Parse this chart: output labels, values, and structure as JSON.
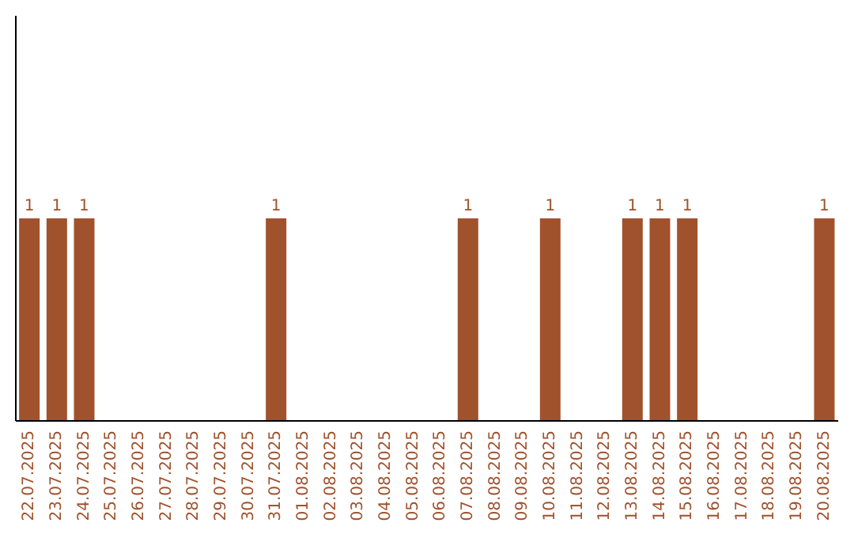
{
  "chart_data": {
    "type": "bar",
    "categories": [
      "22.07.2025",
      "23.07.2025",
      "24.07.2025",
      "25.07.2025",
      "26.07.2025",
      "27.07.2025",
      "28.07.2025",
      "29.07.2025",
      "30.07.2025",
      "31.07.2025",
      "01.08.2025",
      "02.08.2025",
      "03.08.2025",
      "04.08.2025",
      "05.08.2025",
      "06.08.2025",
      "07.08.2025",
      "08.08.2025",
      "09.08.2025",
      "10.08.2025",
      "11.08.2025",
      "12.08.2025",
      "13.08.2025",
      "14.08.2025",
      "15.08.2025",
      "16.08.2025",
      "17.08.2025",
      "18.08.2025",
      "19.08.2025",
      "20.08.2025"
    ],
    "values": [
      1,
      1,
      1,
      0,
      0,
      0,
      0,
      0,
      0,
      1,
      0,
      0,
      0,
      0,
      0,
      0,
      1,
      0,
      0,
      1,
      0,
      0,
      1,
      1,
      1,
      0,
      0,
      0,
      0,
      1
    ],
    "value_labels": [
      "1",
      "1",
      "1",
      null,
      null,
      null,
      null,
      null,
      null,
      "1",
      null,
      null,
      null,
      null,
      null,
      null,
      "1",
      null,
      null,
      "1",
      null,
      null,
      "1",
      "1",
      "1",
      null,
      null,
      null,
      null,
      "1"
    ],
    "color": "#a0522d",
    "ylim": [
      0,
      2
    ],
    "tick_labels": "x",
    "grid": false,
    "legend": false
  }
}
